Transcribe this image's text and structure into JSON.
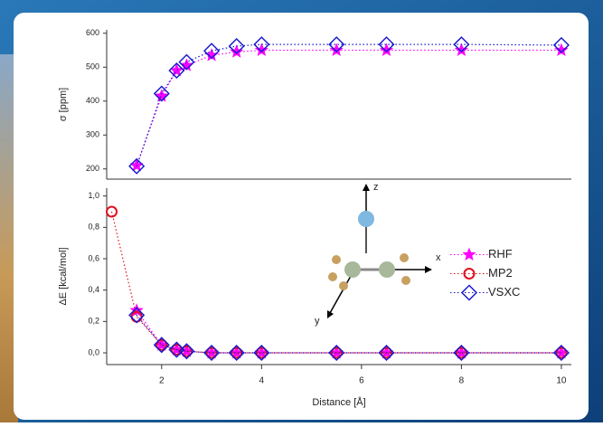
{
  "chart_data": [
    {
      "type": "scatter-line",
      "ylabel": "σ [ppm]",
      "xlim": [
        0.9,
        10.2
      ],
      "ylim": [
        170,
        610
      ],
      "yticks": [
        200,
        300,
        400,
        500,
        600
      ],
      "series": [
        {
          "color": "#ff00ff",
          "marker": "star",
          "x": [
            1.5,
            2,
            2.3,
            2.5,
            3,
            3.5,
            4,
            5.5,
            6.5,
            8,
            10
          ],
          "values": [
            210,
            415,
            490,
            505,
            535,
            545,
            550,
            550,
            550,
            550,
            550
          ]
        },
        {
          "color": "#1a1ad0",
          "marker": "diamond",
          "x": [
            1.5,
            2,
            2.3,
            2.5,
            3,
            3.5,
            4,
            5.5,
            6.5,
            8,
            10
          ],
          "values": [
            208,
            422,
            490,
            515,
            548,
            562,
            567,
            567,
            567,
            567,
            565
          ]
        }
      ]
    },
    {
      "type": "scatter-line",
      "ylabel": "ΔE [kcal/mol]",
      "xlabel": "Distance [Å]",
      "xlim": [
        0.9,
        10.2
      ],
      "xticks": [
        2,
        4,
        6,
        8,
        10
      ],
      "ylim": [
        -0.075,
        1.05
      ],
      "yticks": [
        {
          "value": 0,
          "label": "0,0"
        },
        {
          "value": 0.2,
          "label": "0,2"
        },
        {
          "value": 0.4,
          "label": "0,4"
        },
        {
          "value": 0.6,
          "label": "0,6"
        },
        {
          "value": 0.8,
          "label": "0,8"
        },
        {
          "value": 1.0,
          "label": "1,0"
        }
      ],
      "legend": "right",
      "series": [
        {
          "name": "RHF",
          "color": "#ff00ff",
          "marker": "star",
          "x": [
            1.5,
            2,
            2.3,
            2.5,
            3,
            3.5,
            4,
            5.5,
            6.5,
            8,
            10
          ],
          "values": [
            0.27,
            0.05,
            0.02,
            0.01,
            0,
            0,
            0,
            0,
            0,
            0,
            0
          ]
        },
        {
          "name": "MP2",
          "color": "#e01020",
          "marker": "circle",
          "x": [
            1,
            1.5,
            2,
            2.3,
            2.5,
            3,
            3.5,
            4,
            5.5,
            6.5,
            8,
            10
          ],
          "values": [
            0.9,
            0.23,
            0.05,
            0.02,
            0.01,
            0,
            0,
            0,
            0,
            0,
            0,
            0
          ]
        },
        {
          "name": "VSXC",
          "color": "#1a1ad0",
          "marker": "diamond",
          "x": [
            1.5,
            2,
            2.3,
            2.5,
            3,
            3.5,
            4,
            5.5,
            6.5,
            8,
            10
          ],
          "values": [
            0.24,
            0.05,
            0.02,
            0.01,
            0,
            0,
            0,
            0,
            0,
            0,
            0
          ]
        }
      ]
    }
  ],
  "inset": {
    "axis_labels": [
      "z",
      "x",
      "y"
    ]
  }
}
